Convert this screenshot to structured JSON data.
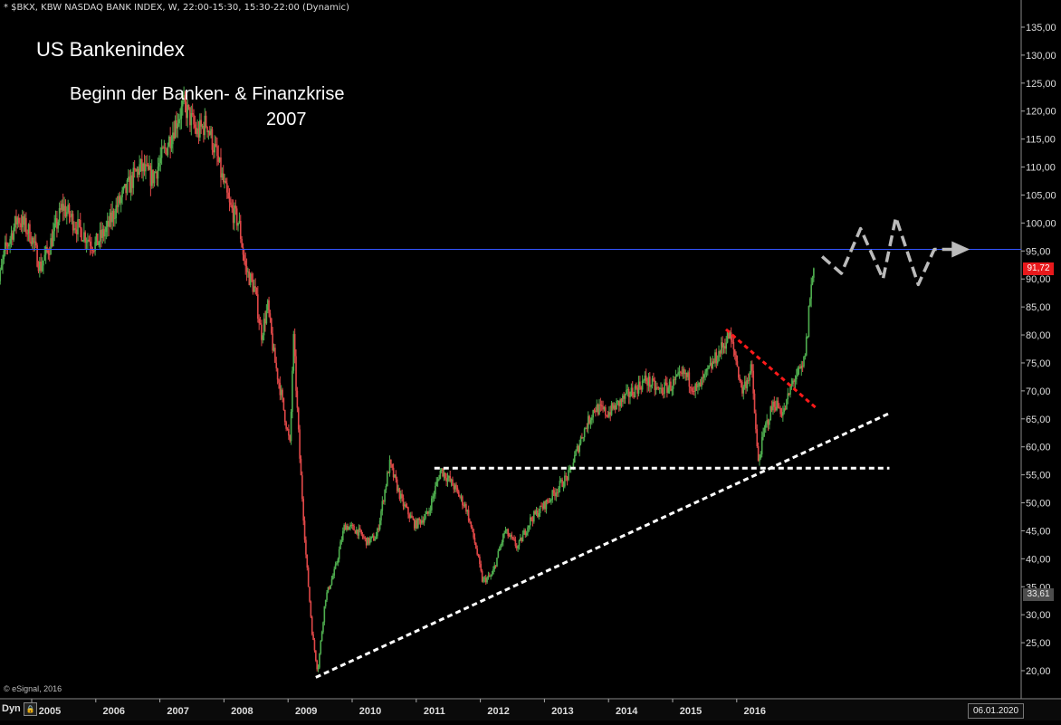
{
  "header": {
    "symbol_line": "* $BKX, KBW NASDAQ BANK INDEX, W, 22:00-15:30, 15:30-22:00 (Dynamic)"
  },
  "annotations": {
    "title": "US Bankenindex",
    "crisis_line1": "Beginn der Banken- & Finanzkrise",
    "crisis_line2": "2007"
  },
  "badges": {
    "last_price": "91,72",
    "low_mark": "33,61",
    "date": "06.01.2020"
  },
  "footer": {
    "dyn_label": "Dyn",
    "copyright": "© eSignal, 2016"
  },
  "colors": {
    "background": "#000000",
    "up_candle": "#4fae4f",
    "down_candle": "#e04848",
    "resistance_line": "#3355ff",
    "trendline": "#ffffff",
    "downtrend": "#ff1a1a",
    "projection": "#bbbbbb"
  },
  "chart_data": {
    "type": "candlestick",
    "x_axis": {
      "tick_labels": [
        "2005",
        "2006",
        "2007",
        "2008",
        "2009",
        "2010",
        "2011",
        "2012",
        "2013",
        "2014",
        "2015",
        "2016"
      ]
    },
    "y_axis": {
      "tick_labels": [
        "20,00",
        "25,00",
        "30,00",
        "35,00",
        "40,00",
        "45,00",
        "50,00",
        "55,00",
        "60,00",
        "65,00",
        "70,00",
        "75,00",
        "80,00",
        "85,00",
        "90,00",
        "95,00",
        "100,00",
        "105,00",
        "110,00",
        "115,00",
        "120,00",
        "125,00",
        "130,00",
        "135,00"
      ],
      "range": [
        17,
        137
      ],
      "side": "right"
    },
    "price_path": [
      [
        2004.15,
        86
      ],
      [
        2004.3,
        95
      ],
      [
        2004.5,
        101
      ],
      [
        2004.7,
        98
      ],
      [
        2004.85,
        92
      ],
      [
        2005.0,
        96
      ],
      [
        2005.2,
        103
      ],
      [
        2005.45,
        99
      ],
      [
        2005.7,
        96
      ],
      [
        2005.9,
        99
      ],
      [
        2006.0,
        102
      ],
      [
        2006.2,
        106
      ],
      [
        2006.4,
        110
      ],
      [
        2006.6,
        108
      ],
      [
        2006.8,
        113
      ],
      [
        2007.0,
        119
      ],
      [
        2007.1,
        121
      ],
      [
        2007.3,
        116
      ],
      [
        2007.45,
        118
      ],
      [
        2007.6,
        112
      ],
      [
        2007.8,
        103
      ],
      [
        2007.95,
        100
      ],
      [
        2008.05,
        92
      ],
      [
        2008.2,
        88
      ],
      [
        2008.3,
        80
      ],
      [
        2008.4,
        85
      ],
      [
        2008.5,
        76
      ],
      [
        2008.6,
        70
      ],
      [
        2008.75,
        60
      ],
      [
        2008.8,
        80
      ],
      [
        2008.9,
        58
      ],
      [
        2009.0,
        40
      ],
      [
        2009.1,
        26
      ],
      [
        2009.18,
        20
      ],
      [
        2009.3,
        33
      ],
      [
        2009.45,
        38
      ],
      [
        2009.6,
        46
      ],
      [
        2009.8,
        45
      ],
      [
        2009.95,
        43
      ],
      [
        2010.1,
        44
      ],
      [
        2010.3,
        57
      ],
      [
        2010.5,
        50
      ],
      [
        2010.7,
        46
      ],
      [
        2010.9,
        48
      ],
      [
        2011.1,
        56
      ],
      [
        2011.3,
        53
      ],
      [
        2011.5,
        49
      ],
      [
        2011.65,
        42
      ],
      [
        2011.75,
        36
      ],
      [
        2011.9,
        37
      ],
      [
        2012.1,
        45
      ],
      [
        2012.3,
        42
      ],
      [
        2012.5,
        47
      ],
      [
        2012.75,
        50
      ],
      [
        2012.95,
        53
      ],
      [
        2013.1,
        55
      ],
      [
        2013.3,
        62
      ],
      [
        2013.5,
        67
      ],
      [
        2013.7,
        66
      ],
      [
        2013.9,
        68
      ],
      [
        2014.1,
        70
      ],
      [
        2014.3,
        72
      ],
      [
        2014.5,
        70
      ],
      [
        2014.7,
        71
      ],
      [
        2014.9,
        73
      ],
      [
        2015.1,
        70
      ],
      [
        2015.3,
        74
      ],
      [
        2015.5,
        78
      ],
      [
        2015.6,
        80
      ],
      [
        2015.7,
        76
      ],
      [
        2015.8,
        70
      ],
      [
        2015.95,
        74
      ],
      [
        2016.05,
        57
      ],
      [
        2016.15,
        63
      ],
      [
        2016.3,
        68
      ],
      [
        2016.45,
        66
      ],
      [
        2016.6,
        72
      ],
      [
        2016.75,
        74
      ],
      [
        2016.82,
        80
      ],
      [
        2016.85,
        86
      ],
      [
        2016.92,
        92
      ]
    ],
    "horizontal_resistance": 95.3,
    "support_levels": [
      {
        "from_x": 2011.0,
        "to_x": 2018.1,
        "y": 56.2,
        "style": "dashed"
      }
    ],
    "uptrend_line": {
      "x0": 2009.15,
      "y0": 18.8,
      "x1": 2018.1,
      "y1": 66
    },
    "downtrend_line": {
      "x0": 2015.55,
      "y0": 81,
      "x1": 2016.95,
      "y1": 67
    },
    "projection_path": [
      [
        2017.05,
        94
      ],
      [
        2017.35,
        91
      ],
      [
        2017.65,
        99
      ],
      [
        2018.0,
        90
      ],
      [
        2018.2,
        101
      ],
      [
        2018.55,
        89
      ],
      [
        2018.8,
        95.3
      ],
      [
        2019.1,
        95.3
      ]
    ]
  }
}
